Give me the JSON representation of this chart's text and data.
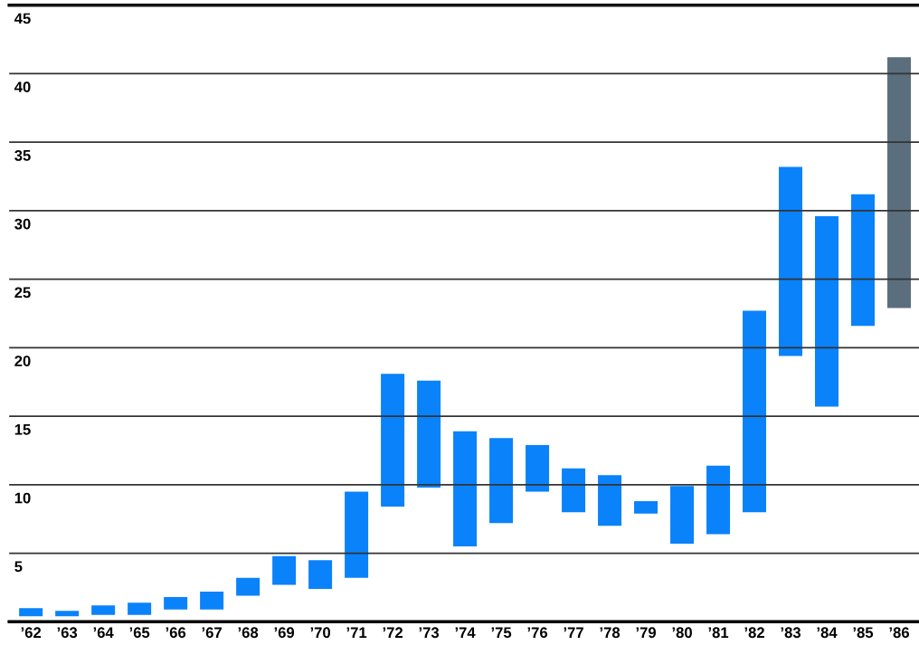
{
  "chart_data": {
    "type": "bar",
    "categories": [
      "’62",
      "’63",
      "’64",
      "’65",
      "’66",
      "’67",
      "’68",
      "’69",
      "’70",
      "’71",
      "’72",
      "’73",
      "’74",
      "’75",
      "’76",
      "’77",
      "’78",
      "’79",
      "’80",
      "’81",
      "’82",
      "’83",
      "’84",
      "’85",
      "’86"
    ],
    "base": [
      0.4,
      0.4,
      0.5,
      0.5,
      0.9,
      0.9,
      1.9,
      2.7,
      2.4,
      3.2,
      8.4,
      9.8,
      5.5,
      7.2,
      9.5,
      8.0,
      7.0,
      7.9,
      5.7,
      6.4,
      8.0,
      19.4,
      15.7,
      21.6,
      22.9
    ],
    "values": [
      0.6,
      0.4,
      0.7,
      0.9,
      0.9,
      1.3,
      1.3,
      2.1,
      2.1,
      6.3,
      9.7,
      7.8,
      8.4,
      6.2,
      3.4,
      3.2,
      3.7,
      0.9,
      4.2,
      5.0,
      14.7,
      13.8,
      13.9,
      9.6,
      18.3
    ],
    "colors": [
      "#0a82fa",
      "#0a82fa",
      "#0a82fa",
      "#0a82fa",
      "#0a82fa",
      "#0a82fa",
      "#0a82fa",
      "#0a82fa",
      "#0a82fa",
      "#0a82fa",
      "#0a82fa",
      "#0a82fa",
      "#0a82fa",
      "#0a82fa",
      "#0a82fa",
      "#0a82fa",
      "#0a82fa",
      "#0a82fa",
      "#0a82fa",
      "#0a82fa",
      "#0a82fa",
      "#0a82fa",
      "#0a82fa",
      "#0a82fa",
      "#5a6e7e"
    ],
    "ylim": [
      0,
      45
    ],
    "yticks": [
      5,
      10,
      15,
      20,
      25,
      30,
      35,
      40,
      45
    ],
    "grid": "y"
  }
}
